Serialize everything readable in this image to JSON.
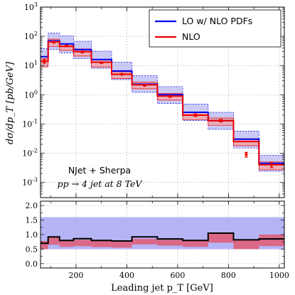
{
  "chart_data": {
    "type": "line",
    "title": "",
    "xlabel": "Leading jet p_T [GeV]",
    "xlim": [
      60,
      1020
    ],
    "x_ticks": [
      "200",
      "400",
      "600",
      "800",
      "1000"
    ],
    "bin_edges": [
      60,
      90,
      135,
      190,
      260,
      340,
      420,
      520,
      620,
      720,
      820,
      920,
      1020
    ],
    "main_panel": {
      "ylabel": "dσ/dp_T [pb/GeV]",
      "yscale": "log",
      "ylim": [
        0.0003,
        1000
      ],
      "y_ticks": [
        "10^{-3}",
        "10^{-2}",
        "10^{-1}",
        "10^{0}",
        "10^{1}",
        "10^{2}",
        "10^{3}"
      ],
      "grid": true,
      "legend_position": "top-right",
      "series": [
        {
          "name": "LO w/ NLO PDFs",
          "color": "#0000ee",
          "band_color": "#b8b8f2",
          "values": [
            20,
            70,
            55,
            35,
            16,
            6.5,
            2.3,
            1.0,
            0.25,
            0.13,
            0.03,
            0.0045
          ],
          "band_low": [
            10,
            35,
            27,
            17,
            8,
            3.3,
            1.2,
            0.5,
            0.13,
            0.065,
            0.015,
            0.0024
          ],
          "band_high": [
            38,
            130,
            105,
            68,
            31,
            13,
            4.5,
            1.9,
            0.48,
            0.25,
            0.057,
            0.0085
          ]
        },
        {
          "name": "NLO",
          "color": "#ee0000",
          "band_color": "#f2a5a5",
          "values": [
            14,
            65,
            45,
            30,
            13,
            5.0,
            2.2,
            0.9,
            0.2,
            0.13,
            0.025,
            0.004
          ],
          "band_low": [
            9,
            45,
            33,
            21,
            9,
            3.6,
            1.6,
            0.65,
            0.14,
            0.09,
            0.018,
            0.0027
          ],
          "band_high": [
            17,
            80,
            55,
            37,
            16,
            6.1,
            2.7,
            1.1,
            0.25,
            0.16,
            0.031,
            0.005
          ],
          "points": [
            14,
            63,
            47,
            29,
            12.5,
            5.0,
            2.1,
            0.88,
            0.2,
            0.13,
            0.009,
            0.004
          ],
          "errors": [
            0.15,
            0.04,
            0.04,
            0.04,
            0.05,
            0.05,
            0.06,
            0.07,
            0.1,
            0.1,
            0.18,
            0.2
          ]
        }
      ],
      "annotations": [
        "NJet + Sherpa",
        "pp → 4 jet at 8 TeV"
      ]
    },
    "ratio_panel": {
      "ylim": [
        -0.15,
        2.15
      ],
      "y_ticks": [
        "0.0",
        "0.5",
        "1.0",
        "1.5",
        "2.0"
      ],
      "grid": true,
      "lo_band": [
        0.5,
        1.6
      ],
      "ratio_values": [
        0.7,
        0.92,
        0.8,
        0.86,
        0.8,
        0.78,
        0.92,
        0.85,
        0.8,
        1.05,
        0.82,
        0.85
      ],
      "ratio_low": [
        0.5,
        0.65,
        0.58,
        0.6,
        0.57,
        0.55,
        0.66,
        0.62,
        0.58,
        0.72,
        0.5,
        0.6
      ],
      "ratio_high": [
        0.78,
        0.93,
        0.8,
        0.82,
        0.81,
        0.8,
        0.85,
        0.82,
        0.82,
        1.05,
        0.82,
        1.0
      ]
    }
  }
}
